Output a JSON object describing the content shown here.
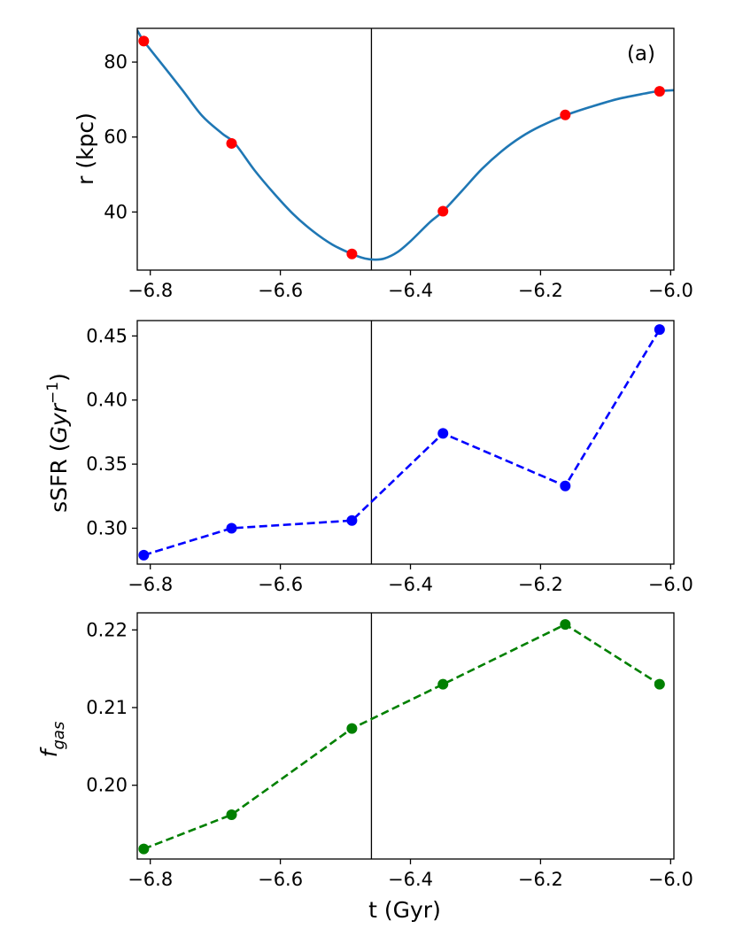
{
  "chart_data": [
    {
      "type": "line",
      "panel": "top",
      "annotation": "(a)",
      "ylabel": "r (kpc)",
      "xlim": [
        -6.82,
        -5.995
      ],
      "ylim": [
        24.5,
        89
      ],
      "xticks": [
        -6.8,
        -6.6,
        -6.4,
        -6.2,
        -6.0
      ],
      "xtick_labels": [
        "−6.8",
        "−6.6",
        "−6.4",
        "−6.2",
        "−6.0"
      ],
      "yticks": [
        40,
        60,
        80
      ],
      "ytick_labels": [
        "40",
        "60",
        "80"
      ],
      "vline_x": -6.46,
      "curve": {
        "color": "#1f77b4",
        "x": [
          -6.82,
          -6.81,
          -6.78,
          -6.75,
          -6.72,
          -6.69,
          -6.67,
          -6.64,
          -6.61,
          -6.58,
          -6.55,
          -6.52,
          -6.49,
          -6.47,
          -6.455,
          -6.44,
          -6.42,
          -6.4,
          -6.37,
          -6.35,
          -6.32,
          -6.29,
          -6.26,
          -6.23,
          -6.2,
          -6.16,
          -6.12,
          -6.08,
          -6.04,
          -6.02,
          -5.995
        ],
        "y": [
          88.5,
          85.6,
          79.0,
          72.4,
          65.6,
          61.0,
          58.3,
          51.2,
          45.0,
          39.4,
          34.9,
          31.3,
          28.8,
          27.6,
          27.3,
          27.6,
          29.3,
          32.2,
          37.3,
          40.2,
          45.8,
          51.5,
          56.2,
          60.0,
          62.9,
          65.9,
          68.2,
          70.2,
          71.6,
          72.2,
          72.5
        ]
      },
      "points": {
        "color": "#ff0000",
        "x": [
          -6.81,
          -6.675,
          -6.49,
          -6.35,
          -6.162,
          -6.017
        ],
        "y": [
          85.6,
          58.3,
          28.8,
          40.2,
          65.9,
          72.2
        ]
      }
    },
    {
      "type": "line",
      "panel": "middle",
      "ylabel": "sSFR (Gyr⁻¹)",
      "ylabel_main": "sSFR (",
      "ylabel_unit": "Gyr",
      "ylabel_exp": "−1",
      "ylabel_close": ")",
      "xlim": [
        -6.82,
        -5.995
      ],
      "ylim": [
        0.272,
        0.462
      ],
      "xticks": [
        -6.8,
        -6.6,
        -6.4,
        -6.2,
        -6.0
      ],
      "xtick_labels": [
        "−6.8",
        "−6.6",
        "−6.4",
        "−6.2",
        "−6.0"
      ],
      "yticks": [
        0.3,
        0.35,
        0.4,
        0.45
      ],
      "ytick_labels": [
        "0.30",
        "0.35",
        "0.40",
        "0.45"
      ],
      "vline_x": -6.46,
      "series": [
        {
          "color": "#0000ff",
          "x": [
            -6.81,
            -6.675,
            -6.49,
            -6.35,
            -6.162,
            -6.017
          ],
          "y": [
            0.279,
            0.3,
            0.306,
            0.374,
            0.333,
            0.455
          ]
        }
      ]
    },
    {
      "type": "line",
      "panel": "bottom",
      "ylabel": "f_gas",
      "ylabel_main": "f",
      "ylabel_sub": "gas",
      "xlabel": "t (Gyr)",
      "xlim": [
        -6.82,
        -5.995
      ],
      "ylim": [
        0.1905,
        0.2222
      ],
      "xticks": [
        -6.8,
        -6.6,
        -6.4,
        -6.2,
        -6.0
      ],
      "xtick_labels": [
        "−6.8",
        "−6.6",
        "−6.4",
        "−6.2",
        "−6.0"
      ],
      "yticks": [
        0.2,
        0.21,
        0.22
      ],
      "ytick_labels": [
        "0.20",
        "0.21",
        "0.22"
      ],
      "vline_x": -6.46,
      "series": [
        {
          "color": "#008000",
          "x": [
            -6.81,
            -6.675,
            -6.49,
            -6.35,
            -6.162,
            -6.017
          ],
          "y": [
            0.1918,
            0.1962,
            0.2073,
            0.213,
            0.2207,
            0.213
          ]
        }
      ]
    }
  ]
}
